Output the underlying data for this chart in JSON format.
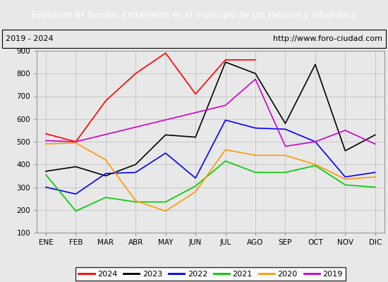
{
  "title": "Evolucion Nº Turistas Extranjeros en el municipio de Los Palacios y Villafranca",
  "subtitle_left": "2019 - 2024",
  "subtitle_right": "http://www.foro-ciudad.com",
  "title_bg_color": "#4472c4",
  "title_text_color": "#ffffff",
  "months": [
    "ENE",
    "FEB",
    "MAR",
    "ABR",
    "MAY",
    "JUN",
    "JUL",
    "AGO",
    "SEP",
    "OCT",
    "NOV",
    "DIC"
  ],
  "ylim": [
    100,
    900
  ],
  "yticks": [
    100,
    200,
    300,
    400,
    500,
    600,
    700,
    800,
    900
  ],
  "series": {
    "2024": {
      "color": "#ff0000",
      "data": [
        535,
        500,
        680,
        800,
        890,
        710,
        860,
        860,
        null,
        null,
        null,
        null
      ]
    },
    "2023": {
      "color": "#000000",
      "data": [
        370,
        390,
        350,
        400,
        530,
        520,
        850,
        800,
        580,
        840,
        460,
        530
      ]
    },
    "2022": {
      "color": "#0000ff",
      "data": [
        300,
        270,
        360,
        365,
        450,
        340,
        595,
        560,
        555,
        500,
        345,
        365
      ]
    },
    "2021": {
      "color": "#00cc00",
      "data": [
        355,
        195,
        255,
        235,
        235,
        305,
        415,
        365,
        365,
        395,
        310,
        300
      ]
    },
    "2020": {
      "color": "#ff9900",
      "data": [
        490,
        495,
        420,
        240,
        195,
        280,
        465,
        440,
        440,
        400,
        335,
        345
      ]
    },
    "2019": {
      "color": "#cc00cc",
      "data": [
        505,
        500,
        null,
        null,
        null,
        null,
        660,
        775,
        480,
        500,
        550,
        490
      ]
    }
  },
  "legend_order": [
    "2024",
    "2023",
    "2022",
    "2021",
    "2020",
    "2019"
  ],
  "bg_color": "#e8e8e8",
  "plot_bg_color": "#e8e8e8",
  "grid_color": "#bbbbbb"
}
